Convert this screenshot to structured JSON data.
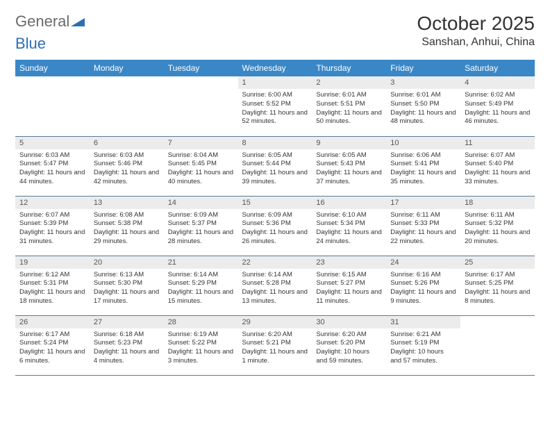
{
  "logo": {
    "text_a": "General",
    "text_b": "Blue"
  },
  "title": "October 2025",
  "location": "Sanshan, Anhui, China",
  "colors": {
    "header_bg": "#3a87c7",
    "header_text": "#ffffff",
    "daynum_bg": "#ececec",
    "border": "#5a7a95",
    "logo_gray": "#6a6a6a",
    "logo_blue": "#2b6fb5",
    "body_text": "#333333",
    "page_bg": "#ffffff"
  },
  "weekdays": [
    "Sunday",
    "Monday",
    "Tuesday",
    "Wednesday",
    "Thursday",
    "Friday",
    "Saturday"
  ],
  "weeks": [
    [
      {
        "day": "",
        "lines": []
      },
      {
        "day": "",
        "lines": []
      },
      {
        "day": "",
        "lines": []
      },
      {
        "day": "1",
        "lines": [
          "Sunrise: 6:00 AM",
          "Sunset: 5:52 PM",
          "Daylight: 11 hours and 52 minutes."
        ]
      },
      {
        "day": "2",
        "lines": [
          "Sunrise: 6:01 AM",
          "Sunset: 5:51 PM",
          "Daylight: 11 hours and 50 minutes."
        ]
      },
      {
        "day": "3",
        "lines": [
          "Sunrise: 6:01 AM",
          "Sunset: 5:50 PM",
          "Daylight: 11 hours and 48 minutes."
        ]
      },
      {
        "day": "4",
        "lines": [
          "Sunrise: 6:02 AM",
          "Sunset: 5:49 PM",
          "Daylight: 11 hours and 46 minutes."
        ]
      }
    ],
    [
      {
        "day": "5",
        "lines": [
          "Sunrise: 6:03 AM",
          "Sunset: 5:47 PM",
          "Daylight: 11 hours and 44 minutes."
        ]
      },
      {
        "day": "6",
        "lines": [
          "Sunrise: 6:03 AM",
          "Sunset: 5:46 PM",
          "Daylight: 11 hours and 42 minutes."
        ]
      },
      {
        "day": "7",
        "lines": [
          "Sunrise: 6:04 AM",
          "Sunset: 5:45 PM",
          "Daylight: 11 hours and 40 minutes."
        ]
      },
      {
        "day": "8",
        "lines": [
          "Sunrise: 6:05 AM",
          "Sunset: 5:44 PM",
          "Daylight: 11 hours and 39 minutes."
        ]
      },
      {
        "day": "9",
        "lines": [
          "Sunrise: 6:05 AM",
          "Sunset: 5:43 PM",
          "Daylight: 11 hours and 37 minutes."
        ]
      },
      {
        "day": "10",
        "lines": [
          "Sunrise: 6:06 AM",
          "Sunset: 5:41 PM",
          "Daylight: 11 hours and 35 minutes."
        ]
      },
      {
        "day": "11",
        "lines": [
          "Sunrise: 6:07 AM",
          "Sunset: 5:40 PM",
          "Daylight: 11 hours and 33 minutes."
        ]
      }
    ],
    [
      {
        "day": "12",
        "lines": [
          "Sunrise: 6:07 AM",
          "Sunset: 5:39 PM",
          "Daylight: 11 hours and 31 minutes."
        ]
      },
      {
        "day": "13",
        "lines": [
          "Sunrise: 6:08 AM",
          "Sunset: 5:38 PM",
          "Daylight: 11 hours and 29 minutes."
        ]
      },
      {
        "day": "14",
        "lines": [
          "Sunrise: 6:09 AM",
          "Sunset: 5:37 PM",
          "Daylight: 11 hours and 28 minutes."
        ]
      },
      {
        "day": "15",
        "lines": [
          "Sunrise: 6:09 AM",
          "Sunset: 5:36 PM",
          "Daylight: 11 hours and 26 minutes."
        ]
      },
      {
        "day": "16",
        "lines": [
          "Sunrise: 6:10 AM",
          "Sunset: 5:34 PM",
          "Daylight: 11 hours and 24 minutes."
        ]
      },
      {
        "day": "17",
        "lines": [
          "Sunrise: 6:11 AM",
          "Sunset: 5:33 PM",
          "Daylight: 11 hours and 22 minutes."
        ]
      },
      {
        "day": "18",
        "lines": [
          "Sunrise: 6:11 AM",
          "Sunset: 5:32 PM",
          "Daylight: 11 hours and 20 minutes."
        ]
      }
    ],
    [
      {
        "day": "19",
        "lines": [
          "Sunrise: 6:12 AM",
          "Sunset: 5:31 PM",
          "Daylight: 11 hours and 18 minutes."
        ]
      },
      {
        "day": "20",
        "lines": [
          "Sunrise: 6:13 AM",
          "Sunset: 5:30 PM",
          "Daylight: 11 hours and 17 minutes."
        ]
      },
      {
        "day": "21",
        "lines": [
          "Sunrise: 6:14 AM",
          "Sunset: 5:29 PM",
          "Daylight: 11 hours and 15 minutes."
        ]
      },
      {
        "day": "22",
        "lines": [
          "Sunrise: 6:14 AM",
          "Sunset: 5:28 PM",
          "Daylight: 11 hours and 13 minutes."
        ]
      },
      {
        "day": "23",
        "lines": [
          "Sunrise: 6:15 AM",
          "Sunset: 5:27 PM",
          "Daylight: 11 hours and 11 minutes."
        ]
      },
      {
        "day": "24",
        "lines": [
          "Sunrise: 6:16 AM",
          "Sunset: 5:26 PM",
          "Daylight: 11 hours and 9 minutes."
        ]
      },
      {
        "day": "25",
        "lines": [
          "Sunrise: 6:17 AM",
          "Sunset: 5:25 PM",
          "Daylight: 11 hours and 8 minutes."
        ]
      }
    ],
    [
      {
        "day": "26",
        "lines": [
          "Sunrise: 6:17 AM",
          "Sunset: 5:24 PM",
          "Daylight: 11 hours and 6 minutes."
        ]
      },
      {
        "day": "27",
        "lines": [
          "Sunrise: 6:18 AM",
          "Sunset: 5:23 PM",
          "Daylight: 11 hours and 4 minutes."
        ]
      },
      {
        "day": "28",
        "lines": [
          "Sunrise: 6:19 AM",
          "Sunset: 5:22 PM",
          "Daylight: 11 hours and 3 minutes."
        ]
      },
      {
        "day": "29",
        "lines": [
          "Sunrise: 6:20 AM",
          "Sunset: 5:21 PM",
          "Daylight: 11 hours and 1 minute."
        ]
      },
      {
        "day": "30",
        "lines": [
          "Sunrise: 6:20 AM",
          "Sunset: 5:20 PM",
          "Daylight: 10 hours and 59 minutes."
        ]
      },
      {
        "day": "31",
        "lines": [
          "Sunrise: 6:21 AM",
          "Sunset: 5:19 PM",
          "Daylight: 10 hours and 57 minutes."
        ]
      },
      {
        "day": "",
        "lines": []
      }
    ]
  ]
}
